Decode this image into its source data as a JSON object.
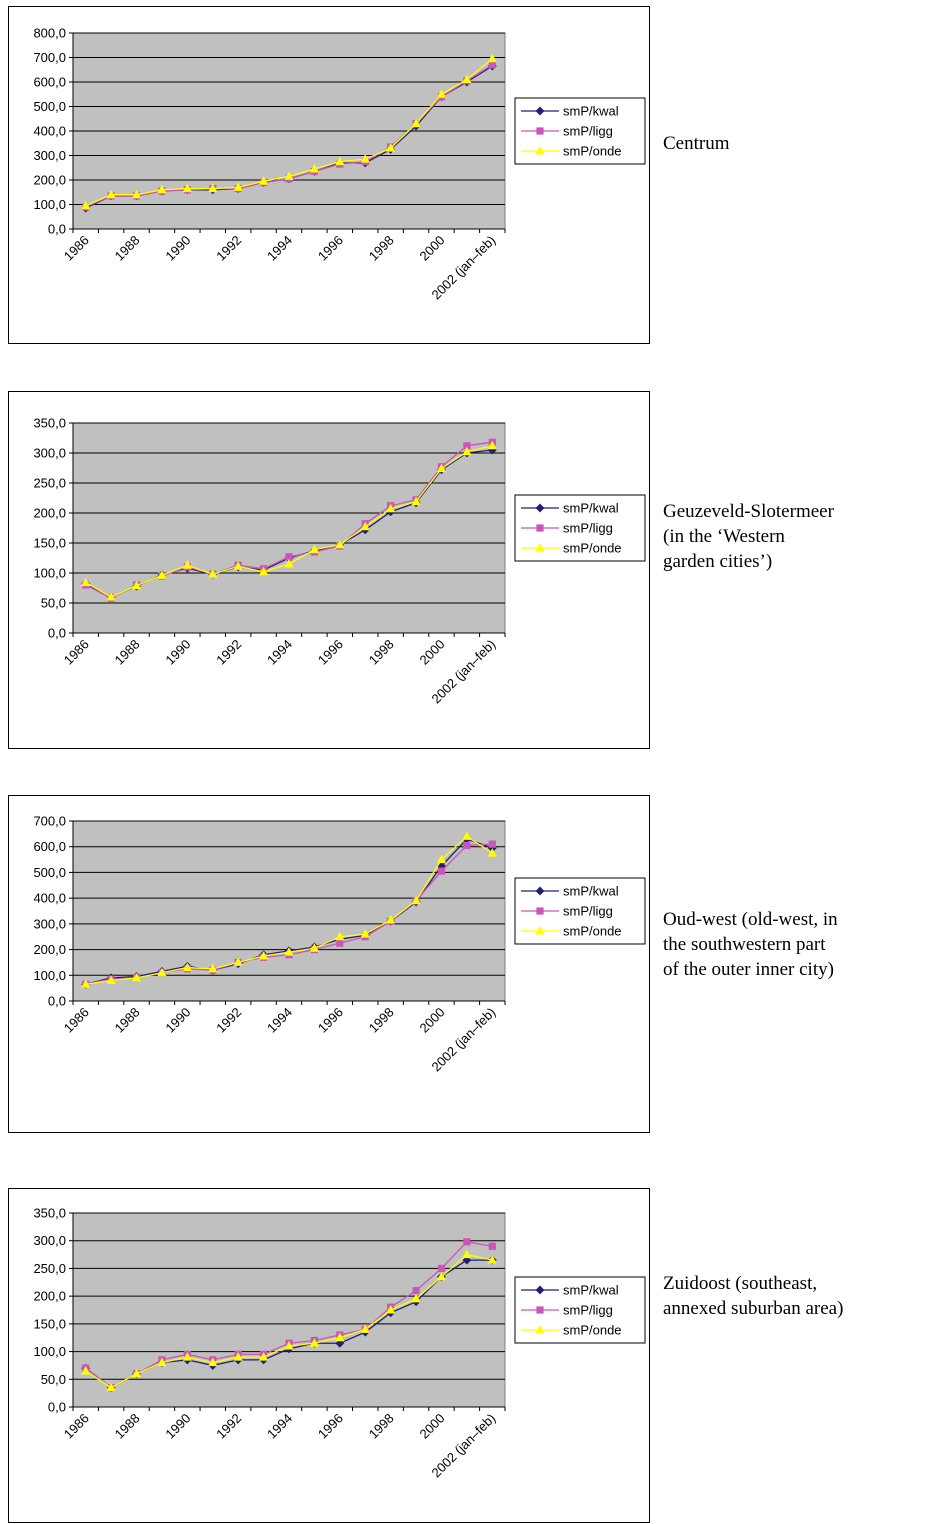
{
  "legend": [
    "smP/kwal",
    "smP/ligg",
    "smP/onde"
  ],
  "colors": {
    "kwal": "#1f1f7a",
    "ligg": "#cc55bb",
    "onde": "#ffff00",
    "plot_bg": "#c0c0c0",
    "grid": "#000000"
  },
  "chart_data": [
    {
      "type": "line",
      "caption": [
        "Centrum"
      ],
      "categories": [
        "1986",
        "1987",
        "1988",
        "1989",
        "1990",
        "1991",
        "1992",
        "1993",
        "1994",
        "1995",
        "1996",
        "1997",
        "1998",
        "1999",
        "2000",
        "2001",
        "2002 (jan–feb)"
      ],
      "x_tick_labels": [
        "1986",
        "",
        "1988",
        "",
        "1990",
        "",
        "1992",
        "",
        "1994",
        "",
        "1996",
        "",
        "1998",
        "",
        "2000",
        "",
        "2002 (jan–feb)"
      ],
      "ylim": [
        0,
        800
      ],
      "y_ticks": [
        "0,0",
        "100,0",
        "200,0",
        "300,0",
        "400,0",
        "500,0",
        "600,0",
        "700,0",
        "800,0"
      ],
      "grid": true,
      "legend_position": "right",
      "series": [
        {
          "name": "smP/kwal",
          "values": [
            85,
            135,
            135,
            155,
            160,
            160,
            165,
            190,
            205,
            235,
            270,
            270,
            325,
            420,
            540,
            600,
            665
          ]
        },
        {
          "name": "smP/ligg",
          "values": [
            90,
            135,
            135,
            155,
            160,
            165,
            165,
            190,
            205,
            235,
            265,
            275,
            335,
            430,
            540,
            605,
            670
          ]
        },
        {
          "name": "smP/onde",
          "values": [
            95,
            140,
            140,
            160,
            165,
            165,
            170,
            195,
            215,
            245,
            275,
            285,
            330,
            430,
            550,
            610,
            695
          ]
        }
      ]
    },
    {
      "type": "line",
      "caption": [
        "Geuzeveld-Slotermeer",
        "(in the ‘Western",
        "garden cities’)"
      ],
      "categories": [
        "1986",
        "1987",
        "1988",
        "1989",
        "1990",
        "1991",
        "1992",
        "1993",
        "1994",
        "1995",
        "1996",
        "1997",
        "1998",
        "1999",
        "2000",
        "2001",
        "2002 (jan–feb)"
      ],
      "x_tick_labels": [
        "1986",
        "",
        "1988",
        "",
        "1990",
        "",
        "1992",
        "",
        "1994",
        "",
        "1996",
        "",
        "1998",
        "",
        "2000",
        "",
        "2002 (jan–feb)"
      ],
      "ylim": [
        0,
        350
      ],
      "y_ticks": [
        "0,0",
        "50,0",
        "100,0",
        "150,0",
        "200,0",
        "250,0",
        "300,0",
        "350,0"
      ],
      "grid": true,
      "legend_position": "right",
      "series": [
        {
          "name": "smP/kwal",
          "values": [
            82,
            60,
            78,
            97,
            108,
            98,
            110,
            105,
            125,
            137,
            147,
            172,
            202,
            217,
            272,
            300,
            305
          ]
        },
        {
          "name": "smP/ligg",
          "values": [
            80,
            58,
            80,
            95,
            110,
            98,
            113,
            107,
            127,
            135,
            145,
            182,
            212,
            222,
            277,
            312,
            318
          ]
        },
        {
          "name": "smP/onde",
          "values": [
            84,
            60,
            79,
            96,
            113,
            98,
            111,
            102,
            115,
            139,
            147,
            177,
            207,
            219,
            274,
            302,
            312
          ]
        }
      ]
    },
    {
      "type": "line",
      "caption": [
        "Oud-west (old-west, in",
        "the southwestern part",
        "of the outer inner city)"
      ],
      "categories": [
        "1986",
        "1987",
        "1988",
        "1989",
        "1990",
        "1991",
        "1992",
        "1993",
        "1994",
        "1995",
        "1996",
        "1997",
        "1998",
        "1999",
        "2000",
        "2001",
        "2002 (jan–feb)"
      ],
      "x_tick_labels": [
        "1986",
        "",
        "1988",
        "",
        "1990",
        "",
        "1992",
        "",
        "1994",
        "",
        "1996",
        "",
        "1998",
        "",
        "2000",
        "",
        "2002 (jan–feb)"
      ],
      "ylim": [
        0,
        700
      ],
      "y_ticks": [
        "0,0",
        "100,0",
        "200,0",
        "300,0",
        "400,0",
        "500,0",
        "600,0",
        "700,0"
      ],
      "grid": true,
      "legend_position": "right",
      "series": [
        {
          "name": "smP/kwal",
          "values": [
            65,
            90,
            95,
            115,
            135,
            120,
            145,
            180,
            195,
            210,
            240,
            255,
            310,
            385,
            525,
            630,
            595
          ]
        },
        {
          "name": "smP/ligg",
          "values": [
            65,
            85,
            90,
            110,
            125,
            120,
            150,
            170,
            180,
            200,
            225,
            250,
            310,
            390,
            505,
            605,
            610
          ]
        },
        {
          "name": "smP/onde",
          "values": [
            65,
            80,
            90,
            110,
            130,
            125,
            150,
            175,
            190,
            205,
            250,
            260,
            315,
            390,
            550,
            640,
            575
          ]
        }
      ]
    },
    {
      "type": "line",
      "caption": [
        "Zuidoost (southeast,",
        "annexed suburban area)"
      ],
      "categories": [
        "1986",
        "1987",
        "1988",
        "1989",
        "1990",
        "1991",
        "1992",
        "1993",
        "1994",
        "1995",
        "1996",
        "1997",
        "1998",
        "1999",
        "2000",
        "2001",
        "2002 (jan–feb)"
      ],
      "x_tick_labels": [
        "1986",
        "",
        "1988",
        "",
        "1990",
        "",
        "1992",
        "",
        "1994",
        "",
        "1996",
        "",
        "1998",
        "",
        "2000",
        "",
        "2002 (jan–feb)"
      ],
      "ylim": [
        0,
        350
      ],
      "y_ticks": [
        "0,0",
        "50,0",
        "100,0",
        "150,0",
        "200,0",
        "250,0",
        "300,0",
        "350,0"
      ],
      "grid": true,
      "legend_position": "right",
      "series": [
        {
          "name": "smP/kwal",
          "values": [
            70,
            35,
            60,
            80,
            85,
            75,
            85,
            85,
            105,
            115,
            115,
            135,
            170,
            190,
            235,
            265,
            265
          ]
        },
        {
          "name": "smP/ligg",
          "values": [
            70,
            35,
            60,
            85,
            95,
            85,
            95,
            95,
            115,
            120,
            130,
            140,
            180,
            210,
            250,
            298,
            290
          ]
        },
        {
          "name": "smP/onde",
          "values": [
            65,
            35,
            60,
            80,
            90,
            80,
            90,
            90,
            110,
            115,
            125,
            140,
            175,
            195,
            235,
            275,
            265
          ]
        }
      ]
    }
  ]
}
